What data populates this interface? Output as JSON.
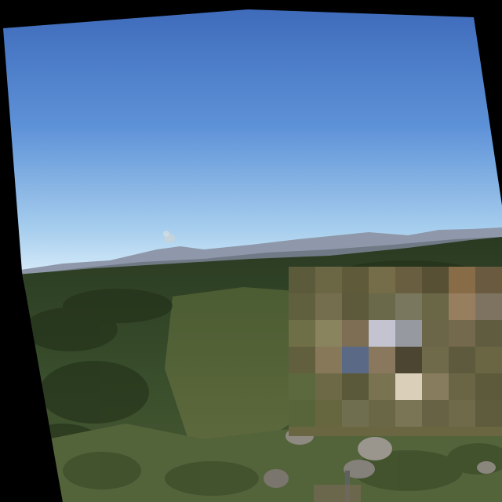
{
  "scene": {
    "type": "webcam-landscape-photo",
    "description_visible": false,
    "colors": {
      "background": "#000000",
      "sky_top": "#3c68b8",
      "sky_mid": "#5e92d8",
      "sky_horizon": "#d8ecfa",
      "distant_hills": "#8c96a8",
      "forest_dark": "#2c3d22",
      "forest_mid": "#3d5230",
      "scrub": "#56663c",
      "rock": "#8a8780",
      "pixelation_block": "#6f6a45"
    },
    "elements": {
      "sky": "sky",
      "horizon_haze": "horizon-haze",
      "distant_mountains": "distant-mountains",
      "smoke_plume": "smoke-plume",
      "forest_slope": "forest-slope",
      "foreground_scrub": "foreground-scrub",
      "rocks": "rocks",
      "pixelated_region": "pixelated-region"
    }
  }
}
